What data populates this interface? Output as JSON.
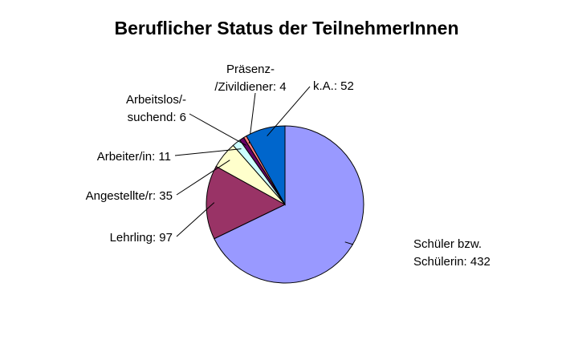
{
  "chart_data": {
    "type": "pie",
    "title": "Beruflicher Status der TeilnehmerInnen",
    "values": [
      432,
      97,
      35,
      11,
      6,
      4,
      52
    ],
    "labels": [
      [
        "Schüler bzw.",
        "Schülerin: 432"
      ],
      [
        "Lehrling: 97"
      ],
      [
        "Angestellte/r: 35"
      ],
      [
        "Arbeiter/in: 11"
      ],
      [
        "Arbeitslos/-",
        "suchend: 6"
      ],
      [
        "Präsenz-",
        "/Zivildiener: 4"
      ],
      [
        "k.A.: 52"
      ]
    ],
    "colors": [
      "#9999ff",
      "#993366",
      "#ffffcc",
      "#ccffff",
      "#660066",
      "#ff8080",
      "#0066cc"
    ]
  }
}
